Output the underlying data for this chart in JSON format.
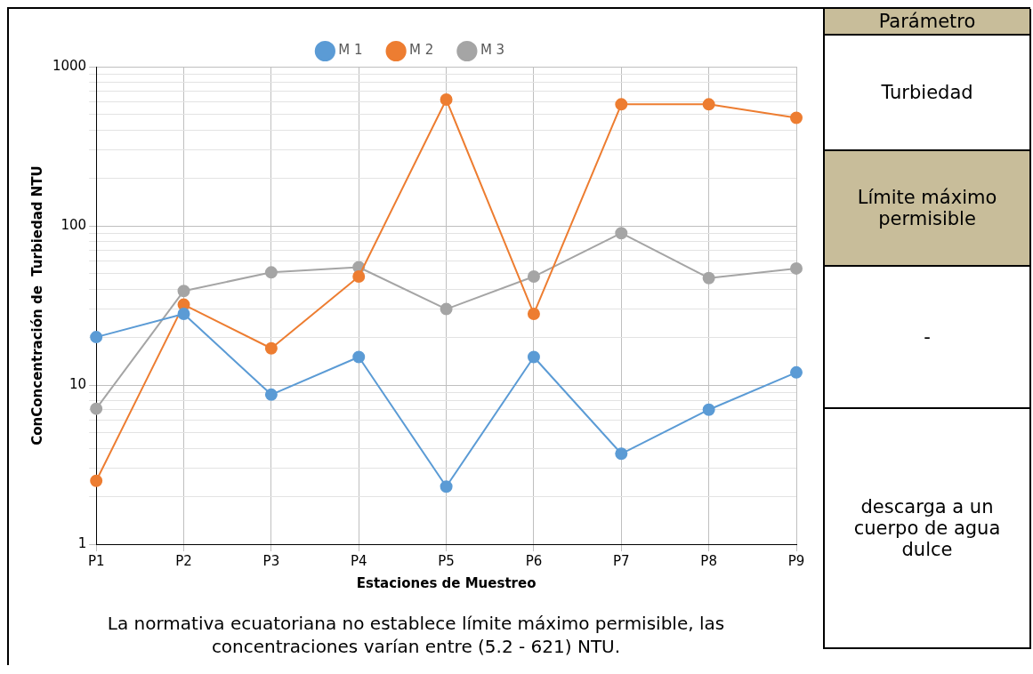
{
  "chart_data": [
    {
      "type": "line",
      "xlabel": "Estaciones de Muestreo",
      "ylabel": "ConConcentración de  Turbiedad NTU",
      "categories": [
        "P1",
        "P2",
        "P3",
        "P4",
        "P5",
        "P6",
        "P7",
        "P8",
        "P9"
      ],
      "series": [
        {
          "name": "M 1",
          "color": "#5b9bd5",
          "values": [
            20,
            28,
            8.7,
            15,
            2.3,
            15,
            3.7,
            7,
            12
          ]
        },
        {
          "name": "M 2",
          "color": "#ed7d31",
          "values": [
            2.5,
            32,
            17,
            48,
            621,
            28,
            580,
            580,
            477
          ]
        },
        {
          "name": "M 3",
          "color": "#a5a5a5",
          "values": [
            7.1,
            39,
            51,
            55,
            30,
            48,
            90,
            47,
            54
          ]
        }
      ],
      "log": "y",
      "ylim": [
        1,
        1000
      ],
      "yticks": [
        1,
        {
          "value": 2,
          "label": null
        },
        {
          "value": 3,
          "label": null
        },
        {
          "value": 4,
          "label": null
        },
        {
          "value": 5,
          "label": null
        },
        {
          "value": 6,
          "label": null
        },
        {
          "value": 7,
          "label": null
        },
        {
          "value": 8,
          "label": null
        },
        {
          "value": 9,
          "label": null
        },
        10,
        {
          "value": 20,
          "label": null
        },
        {
          "value": 30,
          "label": null
        },
        {
          "value": 40,
          "label": null
        },
        {
          "value": 50,
          "label": null
        },
        {
          "value": 60,
          "label": null
        },
        {
          "value": 70,
          "label": null
        },
        {
          "value": 80,
          "label": null
        },
        {
          "value": 90,
          "label": null
        },
        100,
        {
          "value": 200,
          "label": null
        },
        {
          "value": 300,
          "label": null
        },
        {
          "value": 400,
          "label": null
        },
        {
          "value": 500,
          "label": null
        },
        {
          "value": 600,
          "label": null
        },
        {
          "value": 700,
          "label": null
        },
        {
          "value": 800,
          "label": null
        },
        {
          "value": 900,
          "label": null
        },
        1000
      ],
      "grid": true,
      "legend": "top",
      "marker": "circle",
      "line_style": "solid",
      "annotations": [
        "La normativa ecuatoriana no establece límite máximo permisible, las concentraciones varían entre (5.2 -  621) NTU."
      ]
    },
    {
      "type": "other",
      "annotations": [
        "Parámetro",
        "Turbiedad",
        "Límite máximo permisible",
        "-",
        "descarga a un cuerpo de agua dulce"
      ]
    }
  ]
}
